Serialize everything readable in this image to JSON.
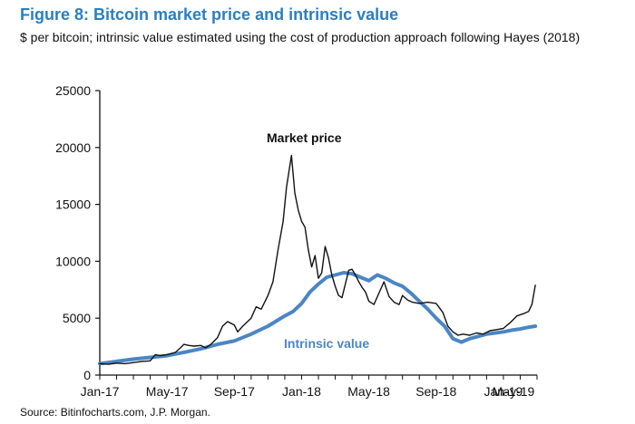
{
  "chart_data": {
    "type": "line",
    "title": "Figure 8: Bitcoin market price and intrinsic value",
    "subtitle": "$ per bitcoin; intrinsic value estimated using the cost of production approach following Hayes (2018)",
    "source": "Source: Bitinfocharts.com, J.P. Morgan.",
    "xlabel": "",
    "ylabel": "",
    "ylim": [
      0,
      25000
    ],
    "yticks": [
      0,
      5000,
      10000,
      15000,
      20000,
      25000
    ],
    "xtick_labels": [
      "Jan-17",
      "May-17",
      "Sep-17",
      "Jan-18",
      "May-18",
      "Sep-18",
      "Jan-19",
      "May-19"
    ],
    "grid": false,
    "colors": {
      "title": "#2a7fc0",
      "market": "#111111",
      "intrinsic": "#4a86c5"
    },
    "series": [
      {
        "name": "Market price",
        "values": [
          [
            0,
            1000
          ],
          [
            0.5,
            950
          ],
          [
            1,
            1050
          ],
          [
            1.5,
            1000
          ],
          [
            2,
            1100
          ],
          [
            2.5,
            1200
          ],
          [
            3,
            1250
          ],
          [
            3.3,
            1800
          ],
          [
            3.6,
            1700
          ],
          [
            4,
            1800
          ],
          [
            4.5,
            2000
          ],
          [
            4.8,
            2400
          ],
          [
            5,
            2700
          ],
          [
            5.3,
            2600
          ],
          [
            5.6,
            2550
          ],
          [
            6,
            2600
          ],
          [
            6.3,
            2400
          ],
          [
            6.6,
            2700
          ],
          [
            7,
            3300
          ],
          [
            7.3,
            4300
          ],
          [
            7.6,
            4700
          ],
          [
            8,
            4400
          ],
          [
            8.2,
            3800
          ],
          [
            8.5,
            4300
          ],
          [
            9,
            5000
          ],
          [
            9.3,
            6000
          ],
          [
            9.6,
            5800
          ],
          [
            10,
            7000
          ],
          [
            10.3,
            8200
          ],
          [
            10.6,
            11000
          ],
          [
            10.9,
            13500
          ],
          [
            11.1,
            16500
          ],
          [
            11.4,
            19300
          ],
          [
            11.6,
            16000
          ],
          [
            11.8,
            14500
          ],
          [
            12,
            13500
          ],
          [
            12.2,
            13000
          ],
          [
            12.4,
            11000
          ],
          [
            12.6,
            9500
          ],
          [
            12.8,
            10500
          ],
          [
            13,
            8500
          ],
          [
            13.2,
            9000
          ],
          [
            13.4,
            11300
          ],
          [
            13.6,
            10300
          ],
          [
            13.8,
            8800
          ],
          [
            14,
            7800
          ],
          [
            14.2,
            7000
          ],
          [
            14.4,
            6800
          ],
          [
            14.6,
            8000
          ],
          [
            14.8,
            9200
          ],
          [
            15,
            9300
          ],
          [
            15.2,
            8800
          ],
          [
            15.4,
            8200
          ],
          [
            15.6,
            7700
          ],
          [
            15.8,
            7300
          ],
          [
            16,
            6500
          ],
          [
            16.3,
            6200
          ],
          [
            16.6,
            7200
          ],
          [
            16.9,
            8200
          ],
          [
            17.2,
            6900
          ],
          [
            17.5,
            6400
          ],
          [
            17.8,
            6200
          ],
          [
            18,
            7000
          ],
          [
            18.3,
            6600
          ],
          [
            18.6,
            6400
          ],
          [
            19,
            6300
          ],
          [
            19.5,
            6400
          ],
          [
            20,
            6300
          ],
          [
            20.4,
            5500
          ],
          [
            20.7,
            4300
          ],
          [
            21,
            3800
          ],
          [
            21.3,
            3500
          ],
          [
            21.6,
            3600
          ],
          [
            22,
            3500
          ],
          [
            22.4,
            3700
          ],
          [
            22.8,
            3600
          ],
          [
            23.2,
            3900
          ],
          [
            23.6,
            4000
          ],
          [
            24,
            4100
          ],
          [
            24.4,
            4600
          ],
          [
            24.8,
            5200
          ],
          [
            25.2,
            5400
          ],
          [
            25.5,
            5600
          ],
          [
            25.7,
            6200
          ],
          [
            25.9,
            7900
          ]
        ]
      },
      {
        "name": "Intrinsic value",
        "values": [
          [
            0,
            1000
          ],
          [
            1,
            1200
          ],
          [
            2,
            1400
          ],
          [
            3,
            1550
          ],
          [
            4,
            1700
          ],
          [
            5,
            2000
          ],
          [
            6,
            2300
          ],
          [
            7,
            2700
          ],
          [
            8,
            3000
          ],
          [
            9,
            3600
          ],
          [
            10,
            4300
          ],
          [
            11,
            5200
          ],
          [
            11.5,
            5600
          ],
          [
            12,
            6300
          ],
          [
            12.5,
            7300
          ],
          [
            13,
            8000
          ],
          [
            13.5,
            8600
          ],
          [
            14,
            8800
          ],
          [
            14.5,
            9000
          ],
          [
            15,
            8900
          ],
          [
            15.5,
            8600
          ],
          [
            16,
            8300
          ],
          [
            16.5,
            8800
          ],
          [
            17,
            8500
          ],
          [
            17.5,
            8100
          ],
          [
            18,
            7800
          ],
          [
            18.5,
            7200
          ],
          [
            19,
            6500
          ],
          [
            19.5,
            5800
          ],
          [
            20,
            5000
          ],
          [
            20.5,
            4300
          ],
          [
            21,
            3200
          ],
          [
            21.5,
            2900
          ],
          [
            22,
            3200
          ],
          [
            22.5,
            3400
          ],
          [
            23,
            3600
          ],
          [
            23.5,
            3700
          ],
          [
            24,
            3800
          ],
          [
            24.5,
            3950
          ],
          [
            25,
            4050
          ],
          [
            25.5,
            4200
          ],
          [
            25.9,
            4300
          ]
        ]
      }
    ]
  }
}
